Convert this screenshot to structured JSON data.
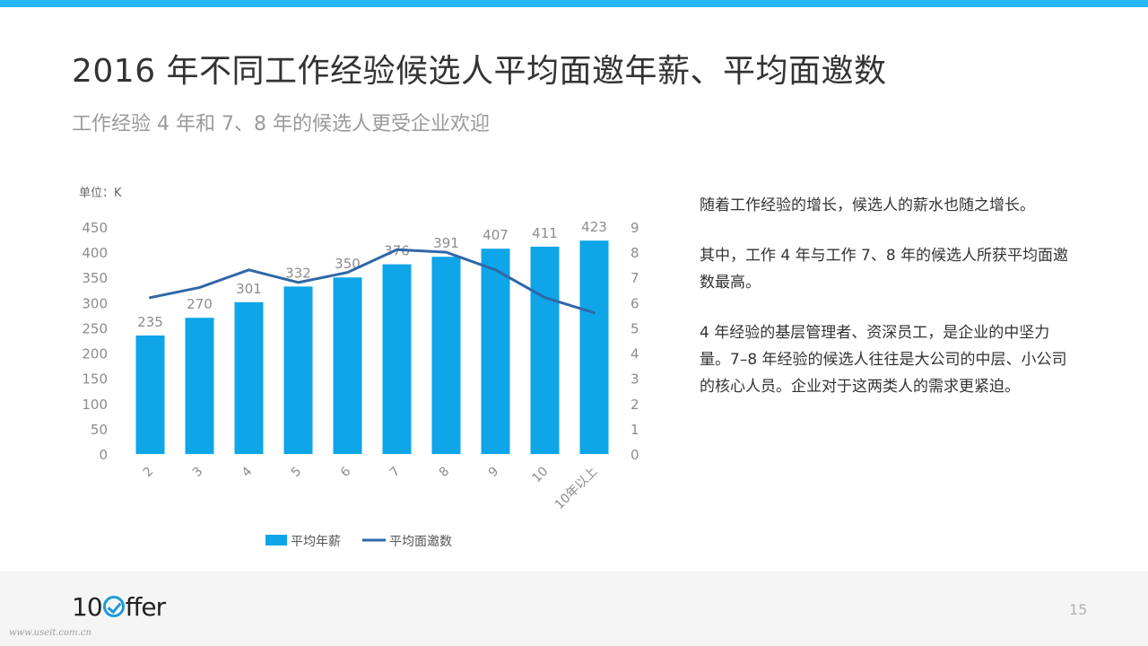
{
  "page": {
    "title": "2016 年不同工作经验候选人平均面邀年薪、平均面邀数",
    "subtitle": "工作经验 4 年和 7、8 年的候选人更受企业欢迎",
    "page_number": "15",
    "logo_text_left": "1",
    "logo_text_o": "0",
    "logo_text_right": "ffer",
    "watermark": "www.useit.com.cn"
  },
  "colors": {
    "accent_bar": "#29b6f6",
    "bar_fill": "#0ea5e9",
    "line_stroke": "#2f67a8",
    "check_blue": "#1f9ad6"
  },
  "side_text": {
    "p1": "随着工作经验的增长，候选人的薪水也随之增长。",
    "p2": "其中，工作 4 年与工作 7、8 年的候选人所获平均面邀数最高。",
    "p3": "4 年经验的基层管理者、资深员工，是企业的中坚力量。7–8 年经验的候选人往往是大公司的中层、小公司的核心人员。企业对于这两类人的需求更紧迫。"
  },
  "chart_data": {
    "type": "bar",
    "unit_label": "单位：K",
    "categories": [
      "2",
      "3",
      "4",
      "5",
      "6",
      "7",
      "8",
      "9",
      "10",
      "10年以上"
    ],
    "series": [
      {
        "name": "平均年薪",
        "type": "bar",
        "axis": "left",
        "values": [
          235,
          270,
          301,
          332,
          350,
          376,
          391,
          407,
          411,
          423
        ]
      },
      {
        "name": "平均面邀数",
        "type": "line",
        "axis": "right",
        "values": [
          6.2,
          6.6,
          7.3,
          6.8,
          7.2,
          8.1,
          8.0,
          7.3,
          6.2,
          5.6
        ]
      }
    ],
    "ylim_left": [
      0,
      450
    ],
    "yticks_left": [
      0,
      50,
      100,
      150,
      200,
      250,
      300,
      350,
      400,
      450
    ],
    "ylim_right": [
      0,
      9
    ],
    "yticks_right": [
      0,
      1,
      2,
      3,
      4,
      5,
      6,
      7,
      8,
      9
    ],
    "legend_position": "bottom",
    "grid": false
  }
}
